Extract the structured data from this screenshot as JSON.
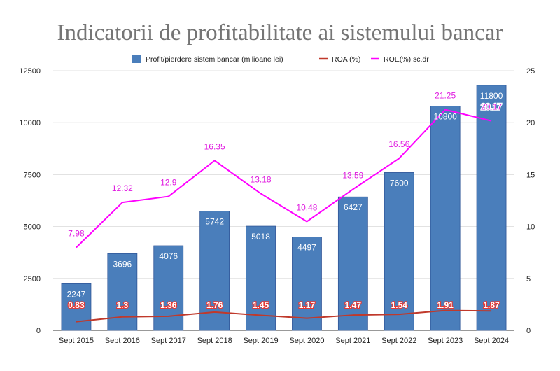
{
  "chart_data": {
    "type": "bar",
    "title": "Indicatorii de profitabilitate ai sistemului bancar",
    "categories": [
      "Sept 2015",
      "Sept 2016",
      "Sept 2017",
      "Sept 2018",
      "Sept 2019",
      "Sept 2020",
      "Sept 2021",
      "Sept 2022",
      "Sept 2023",
      "Sept 2024"
    ],
    "series": [
      {
        "name": "Profit/pierdere sistem bancar (milioane lei)",
        "kind": "bar",
        "axis": "left",
        "color": "#4a7ebb",
        "values": [
          2247,
          3696,
          4076,
          5742,
          5018,
          4497,
          6427,
          7600,
          10800,
          11800
        ]
      },
      {
        "name": "ROA (%)",
        "kind": "line",
        "axis": "right",
        "color": "#c0392b",
        "values": [
          0.83,
          1.3,
          1.36,
          1.76,
          1.45,
          1.17,
          1.47,
          1.54,
          1.91,
          1.87
        ]
      },
      {
        "name": "ROE(%) sc.dr",
        "kind": "line",
        "axis": "right",
        "color": "#ff00ff",
        "values": [
          7.98,
          12.32,
          12.9,
          16.35,
          13.18,
          10.48,
          13.59,
          16.56,
          21.25,
          20.17
        ]
      }
    ],
    "y_left": {
      "min": 0,
      "max": 12500,
      "ticks": [
        0,
        2500,
        5000,
        7500,
        10000,
        12500
      ]
    },
    "y_right": {
      "min": 0,
      "max": 25,
      "ticks": [
        0,
        5,
        10,
        15,
        20,
        25
      ]
    },
    "grid": true,
    "legend_position": "top-center"
  }
}
